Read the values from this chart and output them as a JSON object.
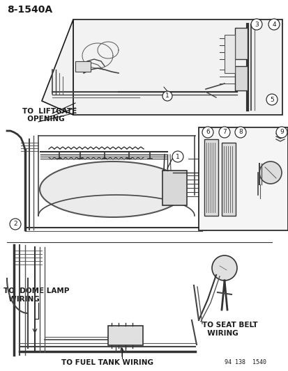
{
  "title_text": "8-1540A",
  "diagram_num": "94 138  1540",
  "bg_color": "#ffffff",
  "tc": "#1a1a1a",
  "gray_light": "#e8e8e8",
  "gray_mid": "#cccccc",
  "gray_dark": "#888888",
  "figsize": [
    4.14,
    5.33
  ],
  "dpi": 100,
  "labels": {
    "liftgate": "TO  LIFTGATE\n  OPENING",
    "dome": "TO  DOME LAMP\n  WIRING",
    "fuel": "TO FUEL TANK WIRING",
    "seatbelt": "TO SEAT BELT\n   WIRING",
    "diag": "94 138  1540"
  }
}
